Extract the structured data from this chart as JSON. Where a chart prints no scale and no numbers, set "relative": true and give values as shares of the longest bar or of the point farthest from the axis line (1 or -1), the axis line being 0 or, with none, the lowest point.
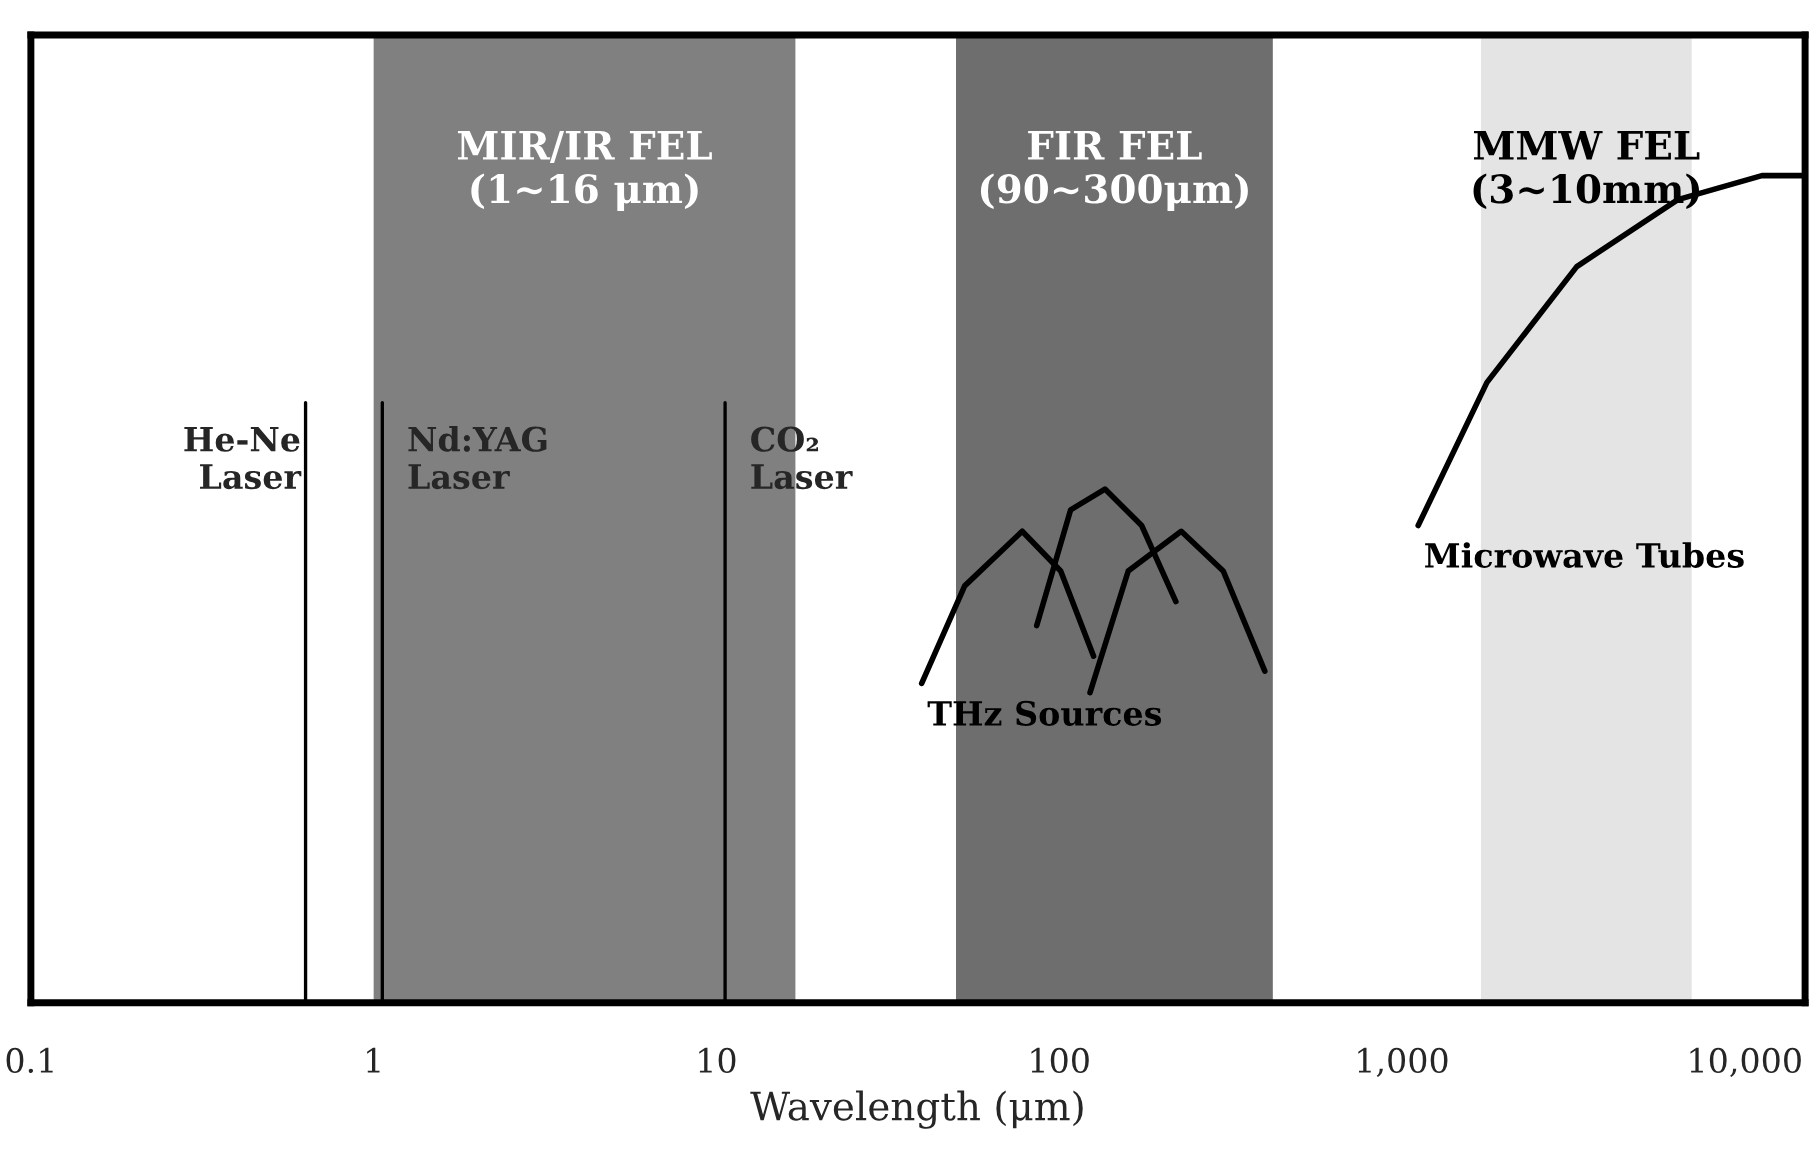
{
  "chart_data": {
    "type": "line",
    "relative": true,
    "xlabel": "Wavelength (μm)",
    "log": "x",
    "tick_labels": "x",
    "xlim": [
      0.1,
      15000
    ],
    "xticks": [
      0.1,
      1,
      10,
      100,
      {
        "value": 1000,
        "label": "1,000"
      },
      {
        "value": 10000,
        "label": "10,000"
      }
    ],
    "series": [
      {
        "name": "THz Sources",
        "color": "#000000",
        "x": [
          39.7,
          53,
          78,
          101,
          126
        ],
        "values": [
          0.386,
          0.504,
          0.57,
          0.522,
          0.419
        ]
      },
      {
        "color": "#000000",
        "x": [
          86,
          108,
          136,
          174,
          219
        ],
        "values": [
          0.456,
          0.596,
          0.621,
          0.577,
          0.485
        ]
      },
      {
        "color": "#000000",
        "x": [
          123,
          159,
          227,
          301,
          398
        ],
        "values": [
          0.375,
          0.522,
          0.57,
          0.522,
          0.401
        ]
      },
      {
        "name": "Microwave Tubes",
        "color": "#000000",
        "x": [
          1115,
          1770,
          3235,
          6380,
          11220,
          14700
        ],
        "values": [
          0.577,
          0.75,
          0.89,
          0.971,
          1.0,
          1.0
        ]
      }
    ],
    "bands": [
      {
        "axis": "x",
        "from": 1,
        "to": 17,
        "label": "MIR/IR FEL\n(1~16 μm)",
        "color": "#808080"
      },
      {
        "axis": "x",
        "from": 50,
        "to": 420,
        "label": "FIR FEL\n(90~300μm)",
        "color": "#6e6e6e"
      },
      {
        "axis": "x",
        "from": 1700,
        "to": 7000,
        "label": "MMW FEL\n(3~10mm)",
        "color": "#e4e4e4"
      }
    ],
    "ref_lines": [
      {
        "axis": "x",
        "value": 0.633,
        "label": "He-Ne\nLaser",
        "color": "#000000"
      },
      {
        "axis": "x",
        "value": 1.06,
        "label": "Nd:YAG\nLaser",
        "color": "#000000"
      },
      {
        "axis": "x",
        "value": 10.6,
        "label": "CO₂\nLaser",
        "color": "#000000"
      }
    ]
  }
}
